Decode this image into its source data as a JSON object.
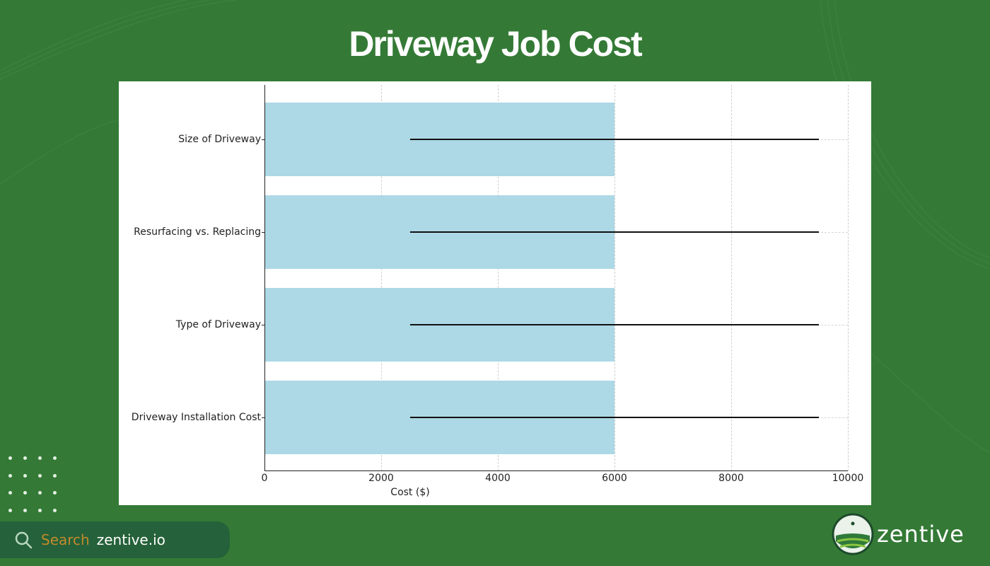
{
  "page": {
    "title": "Driveway Job Cost",
    "background_color": "#347a36"
  },
  "chart_data": {
    "type": "bar",
    "orientation": "horizontal",
    "title": "Driveway Job Cost",
    "categories": [
      "Size of Driveway",
      "Resurfacing vs. Replacing",
      "Type of Driveway",
      "Driveway Installation Cost"
    ],
    "values": [
      6000,
      6000,
      6000,
      6000
    ],
    "error_ranges": [
      [
        2500,
        9500
      ],
      [
        2500,
        9500
      ],
      [
        2500,
        9500
      ],
      [
        2500,
        9500
      ]
    ],
    "xlabel": "Cost ($)",
    "ylabel": "",
    "xlim": [
      0,
      10000
    ],
    "xticks": [
      "0",
      "2000",
      "4000",
      "6000",
      "8000",
      "10000"
    ],
    "grid": true,
    "bar_color": "#add8e6",
    "errbar_color": "#111111",
    "legend": null
  },
  "footer": {
    "search_label": "Search",
    "search_site": "zentive.io",
    "brand_name": "zentive",
    "search_icon": "search-icon",
    "accent_color": "#c08a2c"
  }
}
